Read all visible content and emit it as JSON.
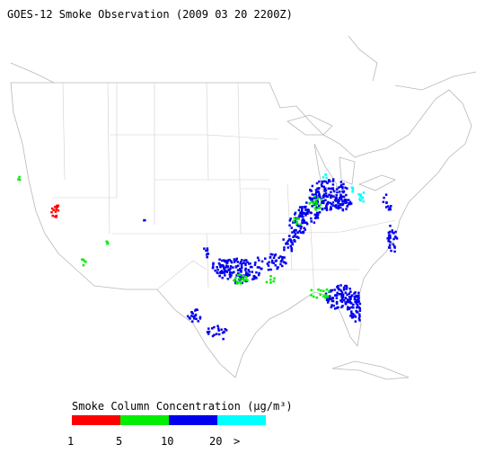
{
  "header": {
    "title": "GOES-12 Smoke Observation (2009 03 20  2200Z)"
  },
  "legend": {
    "title": "Smoke Column Concentration (μg/m³)",
    "colors": [
      "#ff0000",
      "#00ee00",
      "#0000ee",
      "#00ffff"
    ],
    "tick_labels": [
      "1",
      "5",
      "10",
      "20",
      ">"
    ]
  }
}
